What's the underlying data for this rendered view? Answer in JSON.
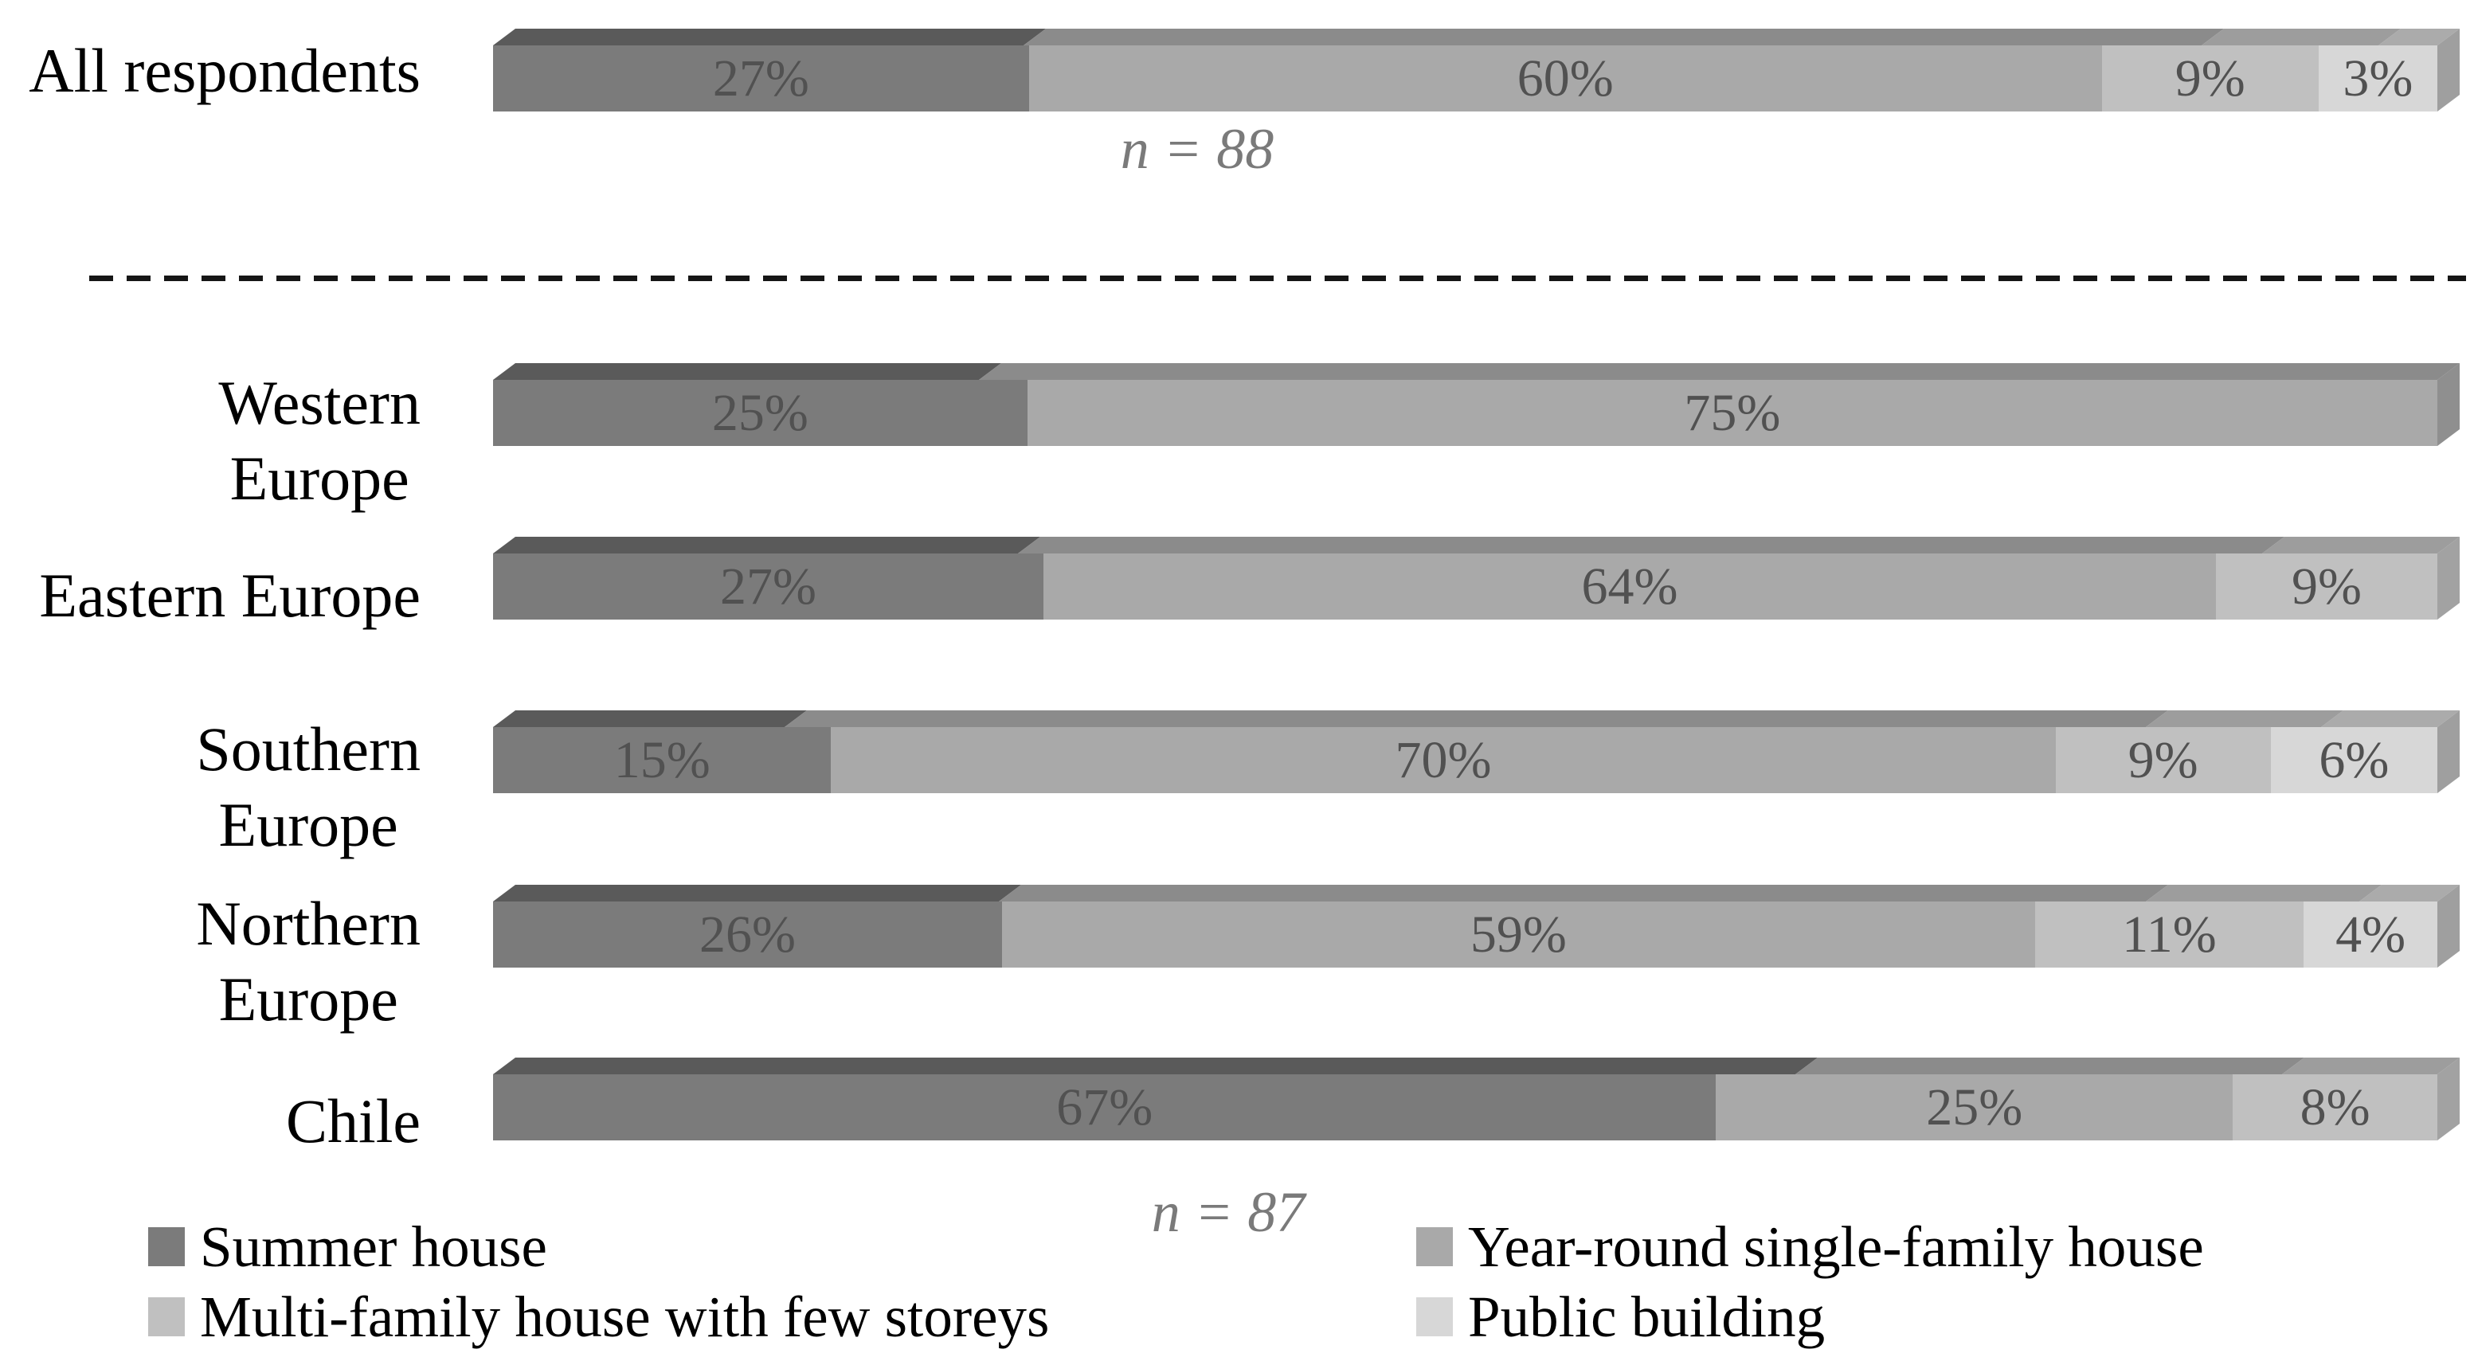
{
  "chart_data": {
    "type": "bar",
    "orientation": "horizontal",
    "stacked": true,
    "value_suffix": "%",
    "grid": false,
    "legend_position": "bottom",
    "axis": "none",
    "series": [
      {
        "name": "Summer house",
        "face": "#7b7b7b",
        "bevel": "#5a5a5a",
        "side": "#555555"
      },
      {
        "name": "Year-round single-family house",
        "face": "#a9a9a9",
        "bevel": "#8b8b8b",
        "side": "#8f8f8f"
      },
      {
        "name": "Multi-family house with few storeys",
        "face": "#c0c0c0",
        "bevel": "#9d9d9d",
        "side": "#a2a2a2"
      },
      {
        "name": "Public building",
        "face": "#d7d7d7",
        "bevel": "#ababab",
        "side": "#9f9f9f"
      }
    ],
    "rows": [
      {
        "category": "All respondents",
        "lines": "All respondents",
        "values": [
          27,
          60,
          9,
          3
        ],
        "n": "n = 88"
      },
      {
        "category": "Western Europe",
        "lines": "Western\nEurope",
        "values": [
          25,
          75,
          0,
          0
        ],
        "n": ""
      },
      {
        "category": "Eastern Europe",
        "lines": "Eastern Europe",
        "values": [
          27,
          64,
          9,
          0
        ],
        "n": ""
      },
      {
        "category": "Southern Europe",
        "lines": "Southern\nEurope",
        "values": [
          15,
          70,
          9,
          6
        ],
        "n": ""
      },
      {
        "category": "Northern Europe",
        "lines": "Northern\nEurope",
        "values": [
          26,
          59,
          11,
          4
        ],
        "n": ""
      },
      {
        "category": "Chile",
        "lines": "Chile",
        "values": [
          67,
          25,
          8,
          0
        ],
        "n": "n = 87"
      }
    ],
    "annotations": {
      "top_group_n": "n = 88",
      "bottom_group_n": "n = 87"
    },
    "divider_style": "dashed"
  }
}
